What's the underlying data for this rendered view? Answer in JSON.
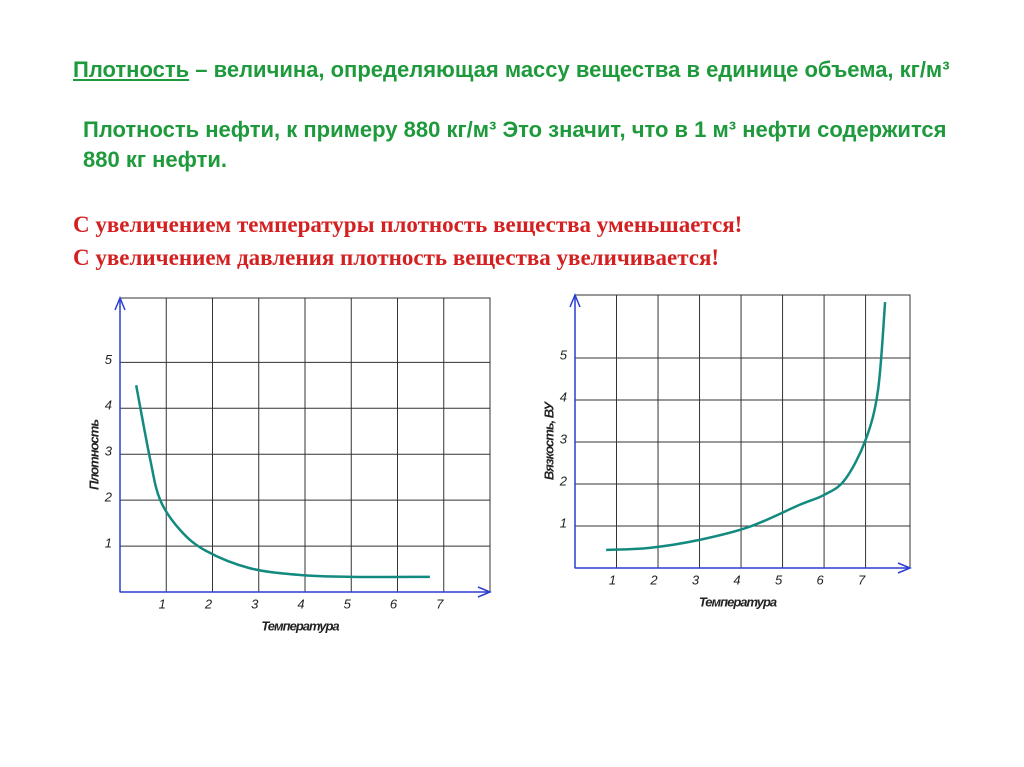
{
  "text": {
    "term": "Плотность",
    "definition": " – величина, определяющая массу вещества в единице объема, кг/м³",
    "example": "Плотность нефти, к примеру 880 кг/м³   Это значит, что в 1 м³   нефти содержится 880 кг нефти.",
    "rule_temperature": "С увеличением температуры плотность вещества уменьшается!",
    "rule_pressure": "С увеличением давления плотность вещества увеличивается!"
  },
  "chart_data": [
    {
      "type": "line",
      "x_label": "Температура",
      "y_label": "Плотность",
      "series": [
        {
          "color": "#138a80",
          "x": [
            0.35,
            0.65,
            0.87,
            1.3,
            1.85,
            2.8,
            3.9,
            5.0,
            6.7
          ],
          "values": [
            4.5,
            2.9,
            2.0,
            1.35,
            0.9,
            0.52,
            0.37,
            0.33,
            0.33
          ]
        }
      ],
      "xlim": [
        0,
        8
      ],
      "xticks": [
        1,
        2,
        3,
        4,
        5,
        6,
        7
      ],
      "ylim": [
        0,
        6.4
      ],
      "yticks": [
        1,
        2,
        3,
        4,
        5
      ],
      "grid": true
    },
    {
      "type": "line",
      "x_label": "Температура",
      "y_label": "Вязкость, ВУ",
      "series": [
        {
          "color": "#138a80",
          "x": [
            0.75,
            1.8,
            3.0,
            4.2,
            5.4,
            6.0,
            6.5,
            7.0,
            7.3,
            7.47
          ],
          "values": [
            0.43,
            0.48,
            0.67,
            0.98,
            1.5,
            1.74,
            2.1,
            3.05,
            4.24,
            6.33
          ]
        }
      ],
      "xlim": [
        0,
        8.07
      ],
      "xticks": [
        1,
        2,
        3,
        4,
        5,
        6,
        7
      ],
      "ylim": [
        0,
        6.5
      ],
      "yticks": [
        1,
        2,
        3,
        4,
        5
      ],
      "grid": true
    }
  ]
}
